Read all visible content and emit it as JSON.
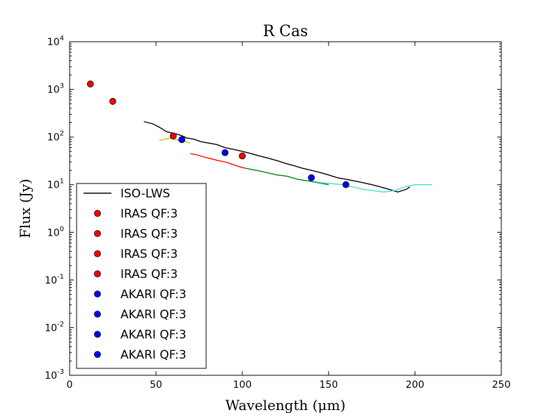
{
  "chart_data": {
    "type": "line",
    "title": "R Cas",
    "xlabel": "Wavelength (μm)",
    "ylabel": "Flux (Jy)",
    "xlim": [
      0,
      250
    ],
    "ylim_log10": [
      -3,
      4
    ],
    "yscale": "log",
    "x_ticks": [
      0,
      50,
      100,
      150,
      200,
      250
    ],
    "y_tick_exponents": [
      -3,
      -2,
      -1,
      0,
      1,
      2,
      3,
      4
    ],
    "y_tick_base": "10",
    "legend_position": "lower-left",
    "legend": [
      {
        "label": "ISO-LWS",
        "kind": "line",
        "color": "#000000"
      },
      {
        "label": "IRAS QF:3",
        "kind": "marker",
        "color": "#ff0000"
      },
      {
        "label": "IRAS QF:3",
        "kind": "marker",
        "color": "#ff0000"
      },
      {
        "label": "IRAS QF:3",
        "kind": "marker",
        "color": "#ff0000"
      },
      {
        "label": "IRAS QF:3",
        "kind": "marker",
        "color": "#ff0000"
      },
      {
        "label": "AKARI QF:3",
        "kind": "marker",
        "color": "#0000ff"
      },
      {
        "label": "AKARI QF:3",
        "kind": "marker",
        "color": "#0000ff"
      },
      {
        "label": "AKARI QF:3",
        "kind": "marker",
        "color": "#0000ff"
      },
      {
        "label": "AKARI QF:3",
        "kind": "marker",
        "color": "#0000ff"
      }
    ],
    "series": [
      {
        "name": "ISO-LWS",
        "color": "#000000",
        "x": [
          43,
          48,
          52,
          56,
          60,
          64,
          68,
          72,
          76,
          80,
          85,
          90,
          95,
          100,
          105,
          110,
          115,
          120,
          125,
          130,
          135,
          140,
          145,
          150,
          155,
          160,
          165,
          170,
          175,
          180,
          185,
          190,
          195,
          197
        ],
        "y": [
          210,
          190,
          160,
          130,
          120,
          110,
          95,
          90,
          80,
          75,
          70,
          60,
          55,
          50,
          45,
          40,
          36,
          32,
          28,
          25,
          22,
          20,
          18,
          16,
          14,
          13,
          12,
          11,
          10,
          9,
          8,
          7,
          8,
          9
        ]
      },
      {
        "name": "segment-yellow",
        "color": "#bfbf00",
        "x": [
          52,
          55,
          58,
          61,
          64,
          67,
          70
        ],
        "y": [
          85,
          90,
          95,
          88,
          85,
          80,
          75
        ]
      },
      {
        "name": "segment-red",
        "color": "#ff0000",
        "x": [
          70,
          74,
          78,
          82,
          86,
          90,
          94,
          98,
          102
        ],
        "y": [
          45,
          42,
          38,
          35,
          32,
          30,
          27,
          24,
          22
        ]
      },
      {
        "name": "segment-green",
        "color": "#008000",
        "x": [
          102,
          108,
          114,
          120,
          126,
          132,
          138,
          144,
          150
        ],
        "y": [
          22,
          20,
          18,
          16,
          15,
          13,
          12,
          11,
          10
        ]
      },
      {
        "name": "segment-cyan",
        "color": "#40e0d0",
        "x": [
          140,
          146,
          152,
          158,
          164,
          170,
          176,
          182,
          188,
          194,
          200,
          210
        ],
        "y": [
          12,
          11,
          10.5,
          10,
          9,
          8,
          7.5,
          7,
          7.5,
          9,
          10,
          10
        ]
      }
    ],
    "points": [
      {
        "name": "IRAS 12",
        "x": 12,
        "y": 1300,
        "color": "#ff0000"
      },
      {
        "name": "IRAS 25",
        "x": 25,
        "y": 560,
        "color": "#ff0000"
      },
      {
        "name": "IRAS 60",
        "x": 60,
        "y": 105,
        "color": "#ff0000"
      },
      {
        "name": "IRAS 100",
        "x": 100,
        "y": 40,
        "color": "#ff0000"
      },
      {
        "name": "AKARI 65",
        "x": 65,
        "y": 88,
        "color": "#0000ff"
      },
      {
        "name": "AKARI 90",
        "x": 90,
        "y": 47,
        "color": "#0000ff"
      },
      {
        "name": "AKARI 140",
        "x": 140,
        "y": 14,
        "color": "#0000ff"
      },
      {
        "name": "AKARI 160",
        "x": 160,
        "y": 10,
        "color": "#0000ff"
      }
    ]
  }
}
